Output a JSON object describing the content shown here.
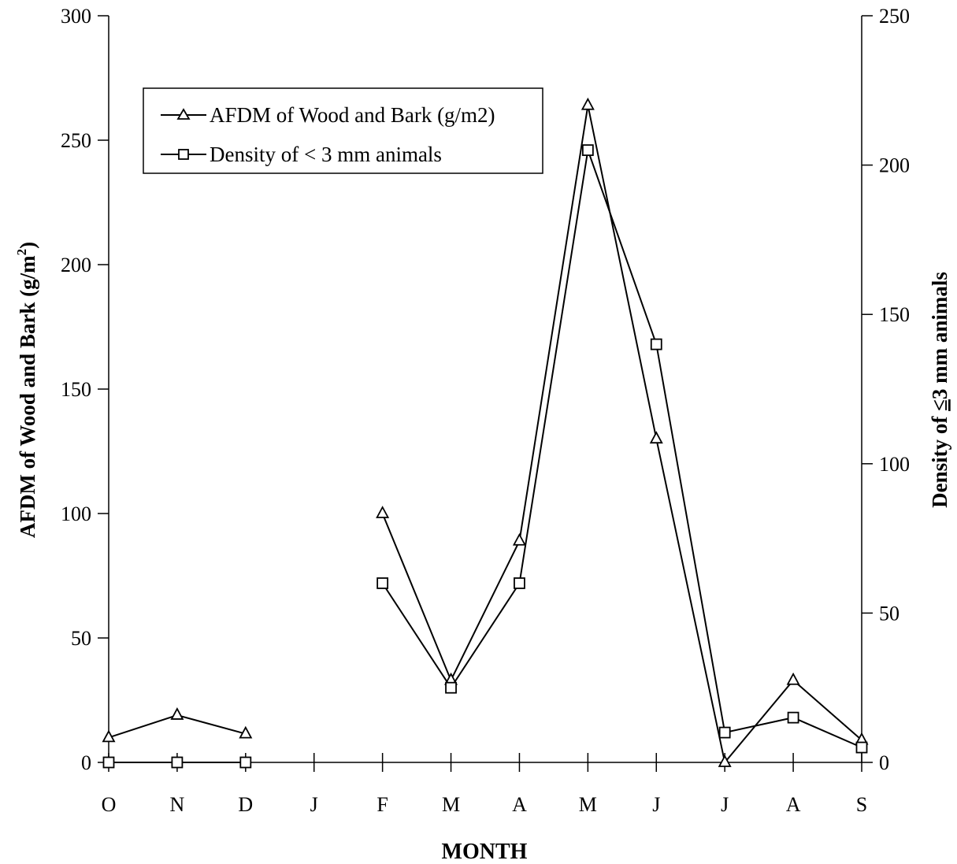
{
  "chart_data": {
    "type": "line",
    "title": "",
    "xlabel": "MONTH",
    "ylabel_left": "AFDM of Wood and Bark (g/m",
    "ylabel_left_sup": "2",
    "ylabel_left_tail": ")",
    "ylabel_right_prefix": "Density of ",
    "ylabel_right_symbol": "≤",
    "ylabel_right_suffix": "3 mm animals",
    "categories": [
      "O",
      "N",
      "D",
      "J",
      "F",
      "M",
      "A",
      "M",
      "J",
      "J",
      "A",
      "S"
    ],
    "ylim_left": [
      0,
      300
    ],
    "ylim_right": [
      0,
      250
    ],
    "yticks_left": [
      "0",
      "50",
      "100",
      "150",
      "200",
      "250",
      "300"
    ],
    "yticks_right": [
      "0",
      "50",
      "100",
      "150",
      "200",
      "250"
    ],
    "grid": false,
    "legend_position": "top-left",
    "series": [
      {
        "name": "AFDM of Wood and Bark (g/m2)",
        "axis": "left",
        "marker": "triangle",
        "values": [
          10,
          19,
          11.5,
          null,
          100,
          33,
          89,
          264,
          130,
          0,
          33,
          9
        ]
      },
      {
        "name": "Density of < 3 mm animals",
        "axis": "right",
        "marker": "square",
        "values": [
          0,
          0,
          0,
          null,
          60,
          25,
          60,
          205,
          140,
          10,
          15,
          5
        ]
      }
    ]
  }
}
